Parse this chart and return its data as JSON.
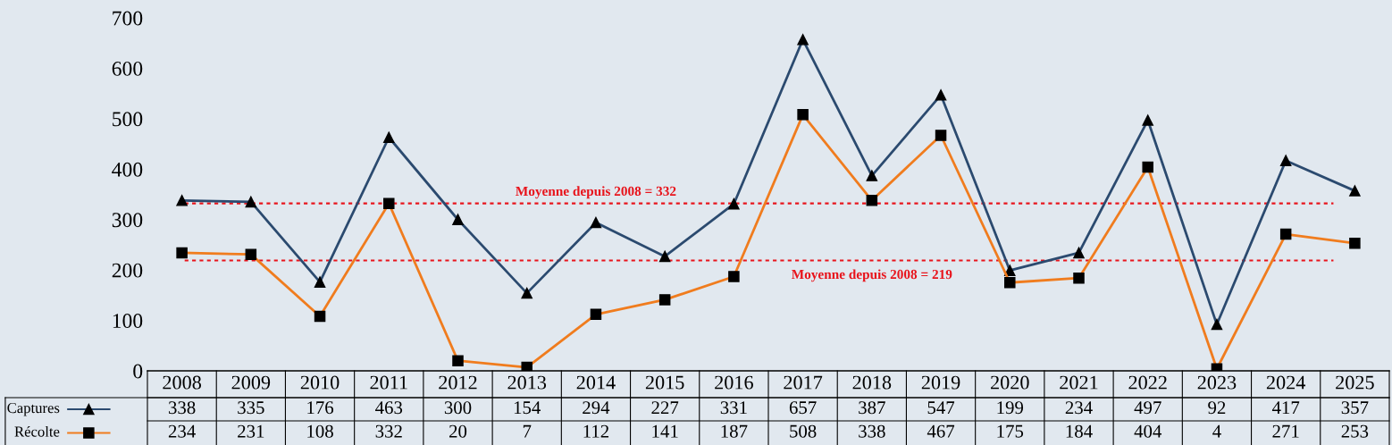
{
  "chart_data": {
    "type": "line",
    "categories": [
      "2008",
      "2009",
      "2010",
      "2011",
      "2012",
      "2013",
      "2014",
      "2015",
      "2016",
      "2017",
      "2018",
      "2019",
      "2020",
      "2021",
      "2022",
      "2023",
      "2024",
      "2025"
    ],
    "series": [
      {
        "name": "Captures",
        "color": "#2b4a6f",
        "marker": "triangle",
        "values": [
          338,
          335,
          176,
          463,
          300,
          154,
          294,
          227,
          331,
          657,
          387,
          547,
          199,
          234,
          497,
          92,
          417,
          357
        ]
      },
      {
        "name": "Récolte",
        "color": "#f07c1e",
        "marker": "square",
        "values": [
          234,
          231,
          108,
          332,
          20,
          7,
          112,
          141,
          187,
          508,
          338,
          467,
          175,
          184,
          404,
          4,
          271,
          253
        ]
      }
    ],
    "ylim": [
      0,
      700
    ],
    "yticks": [
      0,
      100,
      200,
      300,
      400,
      500,
      600,
      700
    ],
    "tick_labels": "y",
    "grid": false,
    "legend": "bottom left",
    "data_labels": true,
    "ref_lines": [
      {
        "axis": "y",
        "value": 332,
        "label": "Moyenne depuis 2008 = 332",
        "color": "#e8141c",
        "line_style": "dotted"
      },
      {
        "axis": "y",
        "value": 219,
        "label": "Moyenne depuis 2008 = 219",
        "color": "#e8141c",
        "line_style": "dotted"
      }
    ]
  }
}
